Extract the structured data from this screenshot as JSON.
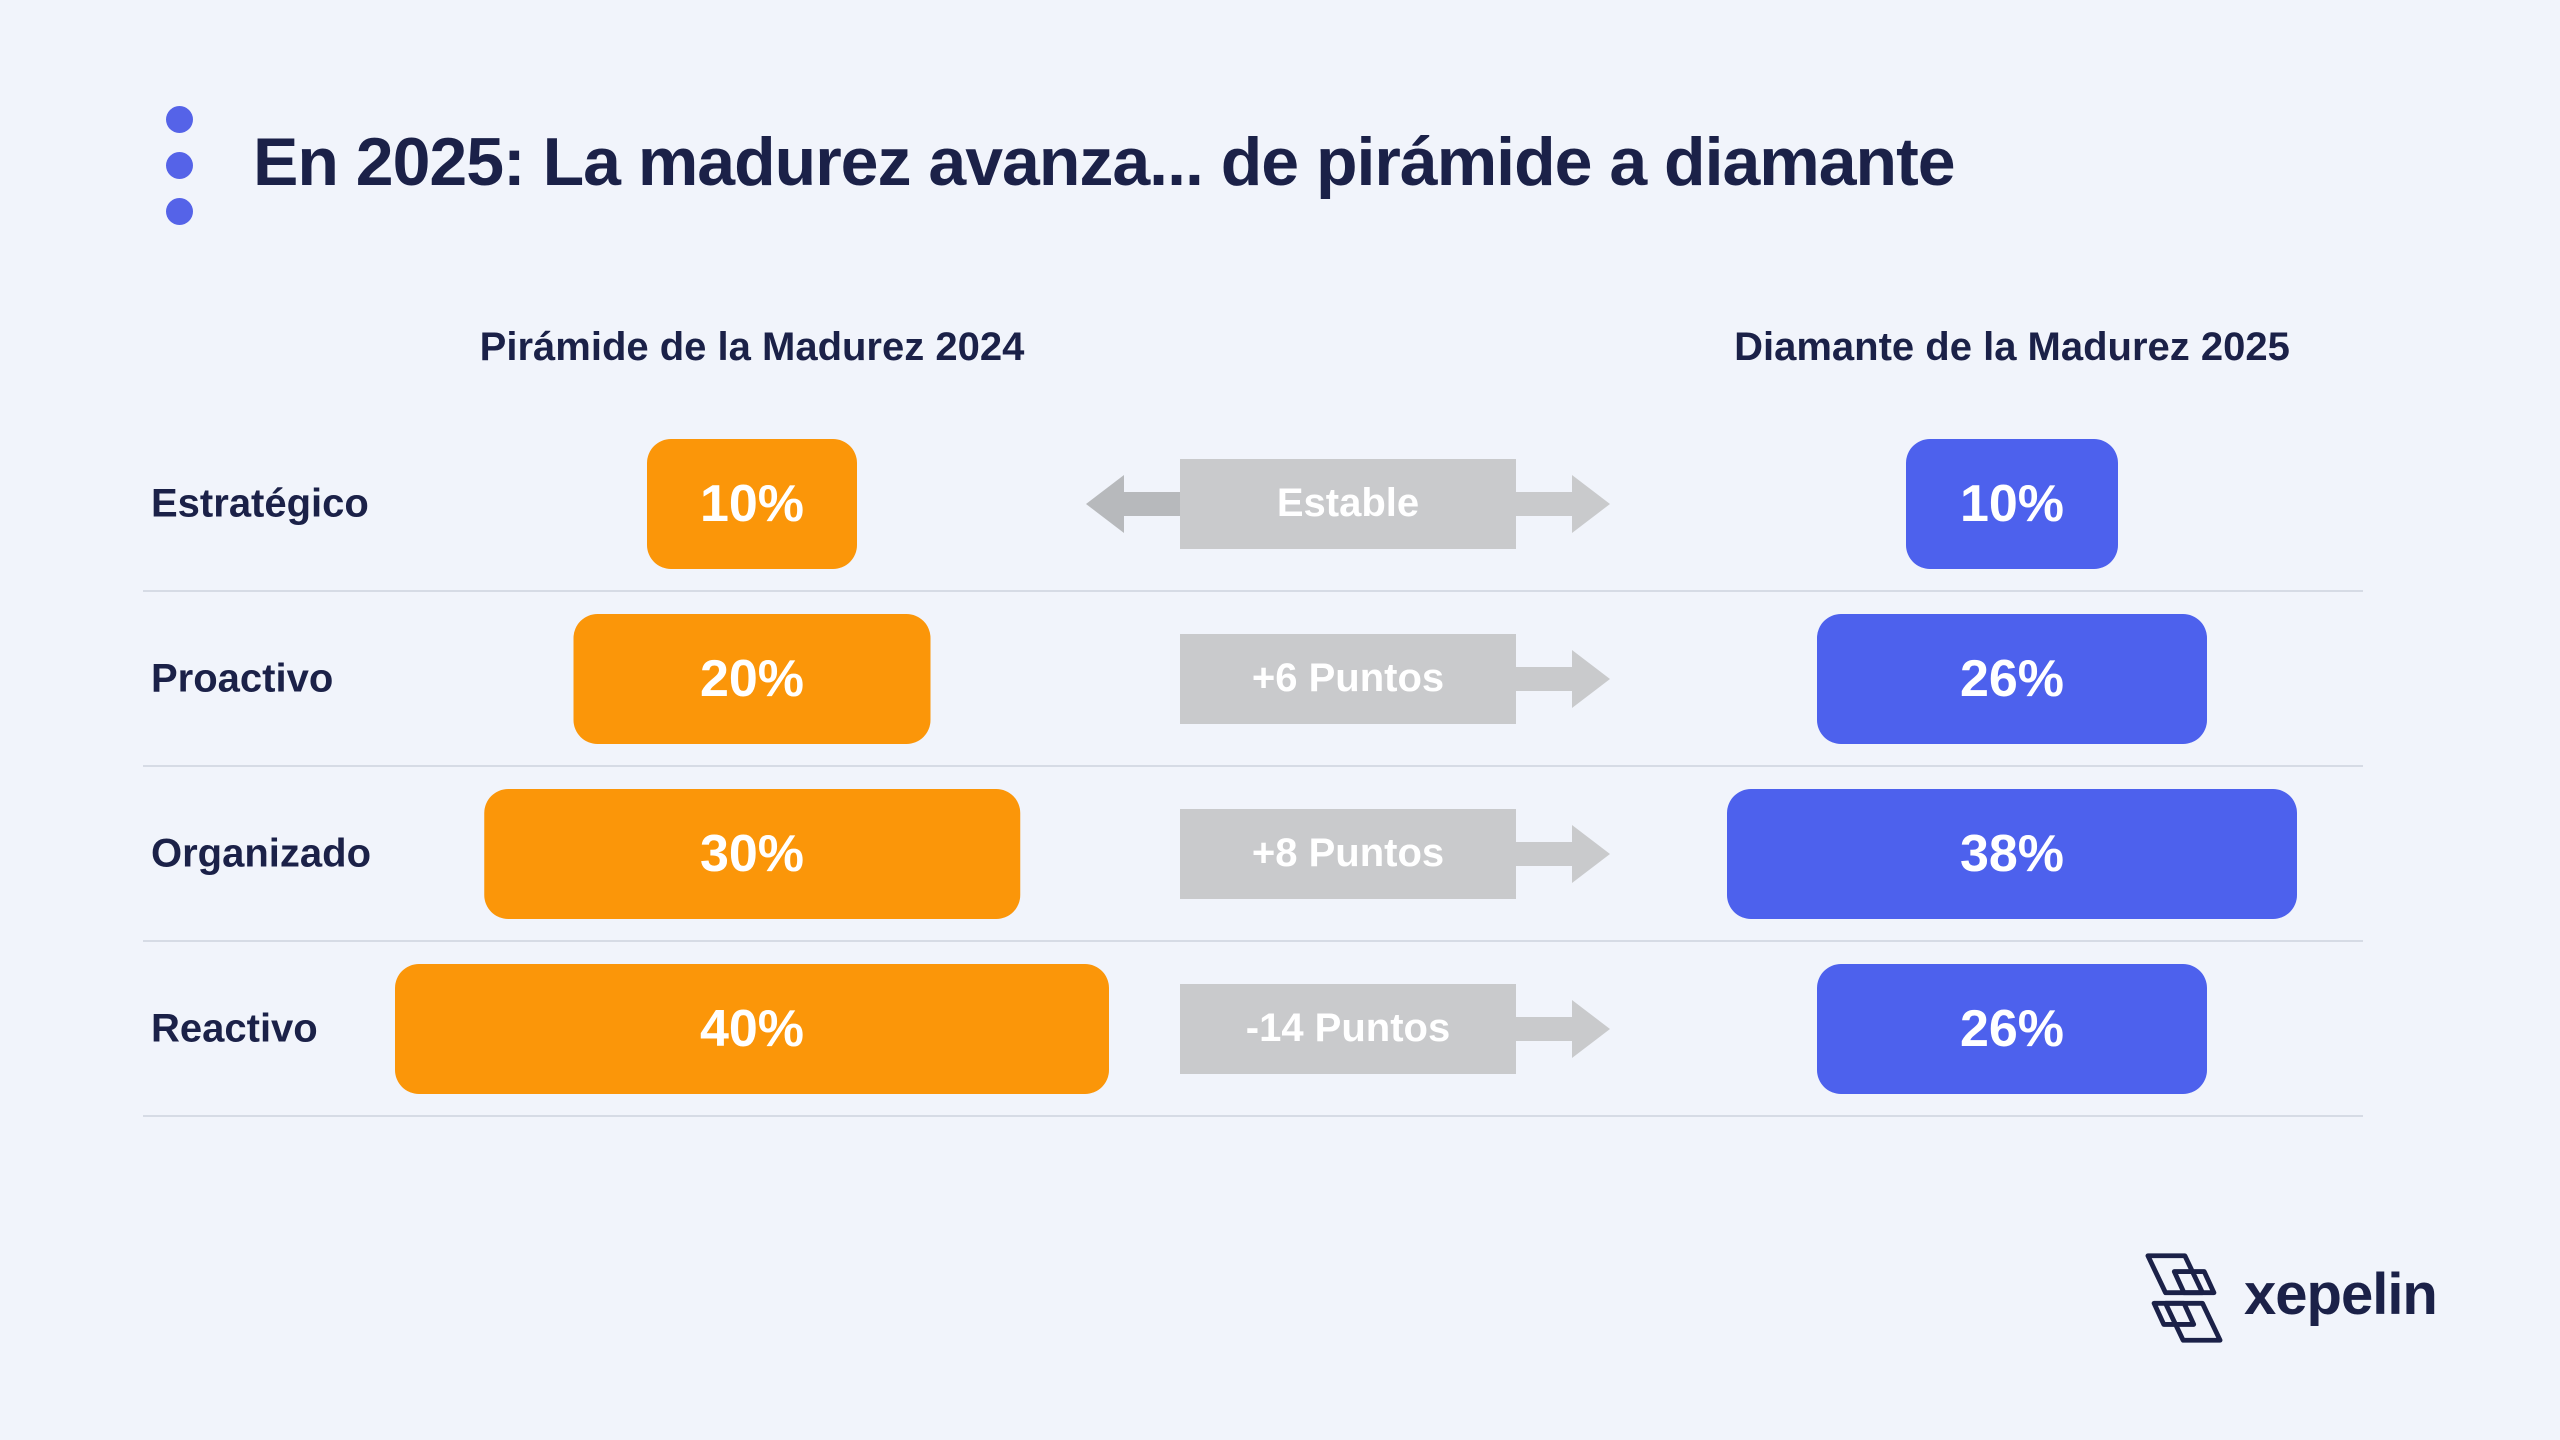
{
  "title": "En 2025: La madurez avanza... de pirámide a diamante",
  "columns": {
    "left": "Pirámide de la Madurez 2024",
    "right": "Diamante de la Madurez 2025"
  },
  "chart_data": {
    "type": "bar",
    "orientation": "horizontal",
    "title": "En 2025: La madurez avanza... de pirámide a diamante",
    "categories": [
      "Estratégico",
      "Proactivo",
      "Organizado",
      "Reactivo"
    ],
    "series": [
      {
        "name": "Pirámide de la Madurez 2024",
        "values": [
          10,
          20,
          30,
          40
        ]
      },
      {
        "name": "Diamante de la Madurez 2025",
        "values": [
          10,
          26,
          38,
          26
        ]
      }
    ],
    "deltas": [
      "Estable",
      "+6 Puntos",
      "+8 Puntos",
      "-14 Puntos"
    ],
    "arrow_styles": [
      "both",
      "right",
      "right",
      "right"
    ],
    "unit": "%",
    "legend_position": "column-headers",
    "grid": "row-dividers"
  },
  "logo": {
    "text": "xepelin"
  },
  "colors": {
    "background": "#F1F4FB",
    "accent-orange": "#FB9609",
    "accent-blue": "#4D61ED",
    "gray-box": "#C9CACC",
    "gray-arrow-dark": "#B7B9BC",
    "navy": "#1B2148",
    "divider": "#D6DBE5",
    "dot-blue": "#5563E8"
  }
}
